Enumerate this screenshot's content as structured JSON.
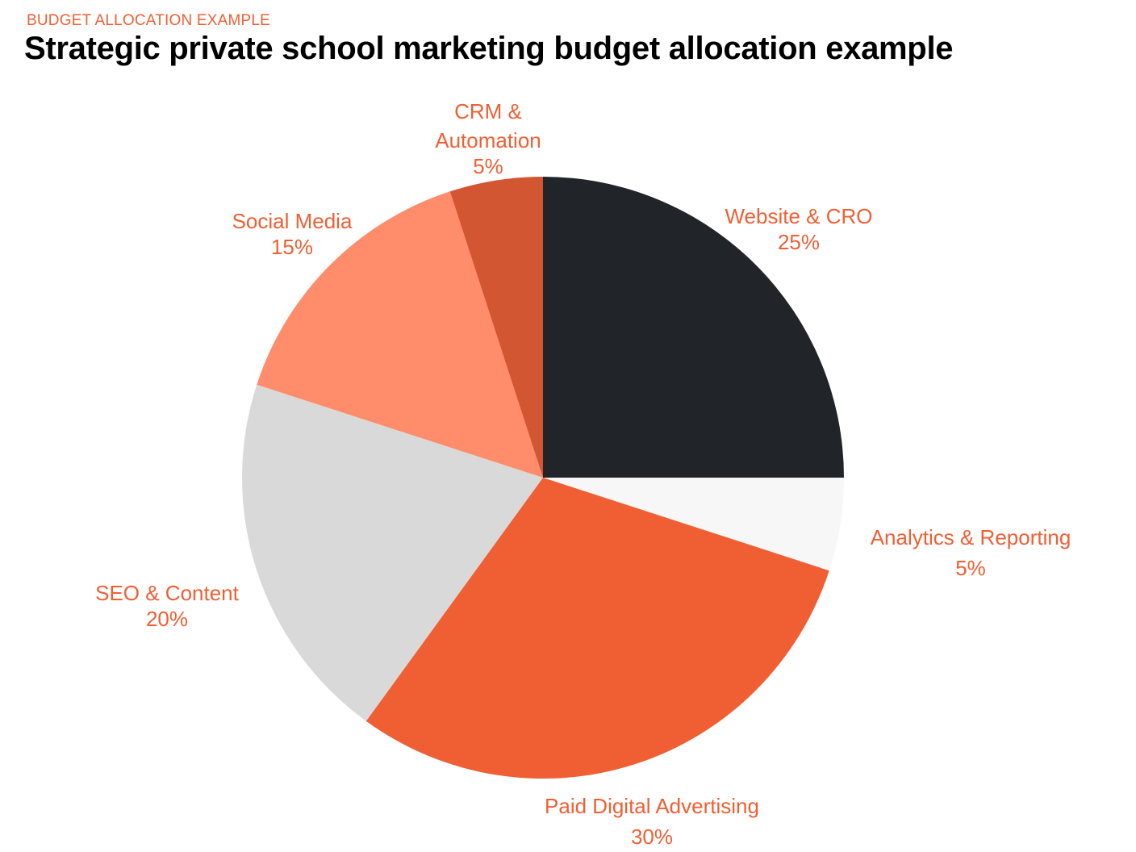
{
  "header": {
    "eyebrow": "BUDGET ALLOCATION EXAMPLE",
    "title": "Strategic private school marketing budget allocation example"
  },
  "chart_data": {
    "type": "pie",
    "title": "Strategic private school marketing budget allocation example",
    "start": "12 o'clock, clockwise",
    "slices": [
      {
        "label": "Website & CRO",
        "label_lines": [
          "Website & CRO"
        ],
        "value": 25,
        "display": "25%",
        "color": "#212529"
      },
      {
        "label": "Analytics & Reporting",
        "label_lines": [
          "Analytics & Reporting"
        ],
        "value": 5,
        "display": "5%",
        "color": "#f7f7f7"
      },
      {
        "label": "Paid Digital Advertising",
        "label_lines": [
          "Paid Digital Advertising"
        ],
        "value": 30,
        "display": "30%",
        "color": "#f05f33"
      },
      {
        "label": "SEO & Content",
        "label_lines": [
          "SEO & Content"
        ],
        "value": 20,
        "display": "20%",
        "color": "#d9d9d9"
      },
      {
        "label": "Social Media",
        "label_lines": [
          "Social Media"
        ],
        "value": 15,
        "display": "15%",
        "color": "#ff8c6b"
      },
      {
        "label": "CRM & Automation",
        "label_lines": [
          "CRM &",
          "Automation"
        ],
        "value": 5,
        "display": "5%",
        "color": "#d35633"
      }
    ],
    "label_color": "#f05f33"
  }
}
